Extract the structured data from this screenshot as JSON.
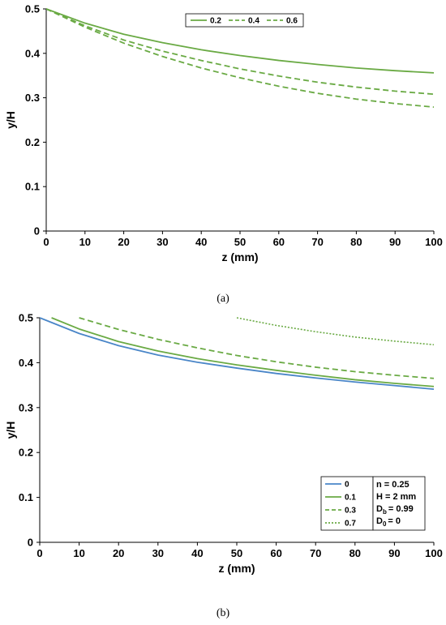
{
  "chart_data": [
    {
      "type": "line",
      "caption": "(a)",
      "xlabel": "z (mm)",
      "ylabel": "y/H",
      "xlim": [
        0,
        100
      ],
      "ylim": [
        0,
        0.5
      ],
      "xticks": [
        0,
        10,
        20,
        30,
        40,
        50,
        60,
        70,
        80,
        90,
        100
      ],
      "yticks": [
        0,
        0.1,
        0.2,
        0.3,
        0.4,
        0.5
      ],
      "ytick_labels": [
        "0",
        "0.1",
        "0.2",
        "0.3",
        "0.4",
        "0.5"
      ],
      "grid": false,
      "legend": "top-center",
      "color": "#6aaa44",
      "series": [
        {
          "name": "0.2",
          "style": "solid",
          "x": [
            0,
            10,
            20,
            30,
            40,
            50,
            60,
            70,
            80,
            90,
            100
          ],
          "y": [
            0.5,
            0.468,
            0.443,
            0.424,
            0.408,
            0.395,
            0.384,
            0.375,
            0.367,
            0.361,
            0.356
          ]
        },
        {
          "name": "0.4",
          "style": "dashed",
          "x": [
            0,
            10,
            20,
            30,
            40,
            50,
            60,
            70,
            80,
            90,
            100
          ],
          "y": [
            0.5,
            0.462,
            0.43,
            0.405,
            0.384,
            0.365,
            0.349,
            0.335,
            0.324,
            0.315,
            0.308
          ]
        },
        {
          "name": "0.6",
          "style": "dashed",
          "x": [
            0,
            10,
            20,
            30,
            40,
            50,
            60,
            70,
            80,
            90,
            100
          ],
          "y": [
            0.5,
            0.459,
            0.423,
            0.393,
            0.367,
            0.345,
            0.326,
            0.31,
            0.297,
            0.287,
            0.279
          ]
        }
      ]
    },
    {
      "type": "line",
      "caption": "(b)",
      "xlabel": "z (mm)",
      "ylabel": "y/H",
      "xlim": [
        0,
        100
      ],
      "ylim": [
        0,
        0.5
      ],
      "xticks": [
        0,
        10,
        20,
        30,
        40,
        50,
        60,
        70,
        80,
        90,
        100
      ],
      "yticks": [
        0,
        0.1,
        0.2,
        0.3,
        0.4,
        0.5
      ],
      "ytick_labels": [
        "0",
        "0.1",
        "0.2",
        "0.3",
        "0.4",
        "0.5"
      ],
      "grid": false,
      "legend": "bottom-right",
      "parameters": [
        "n = 0.25",
        "H = 2 mm",
        "D",
        "b",
        "= 0.99",
        "D",
        "0",
        "= 0"
      ],
      "series": [
        {
          "name": "0",
          "style": "solid",
          "color": "#4a86c8",
          "x": [
            0,
            10,
            20,
            30,
            40,
            50,
            60,
            70,
            80,
            90,
            100
          ],
          "y": [
            0.5,
            0.465,
            0.438,
            0.417,
            0.401,
            0.388,
            0.376,
            0.366,
            0.357,
            0.349,
            0.341
          ]
        },
        {
          "name": "0.1",
          "style": "solid",
          "color": "#6aaa44",
          "x": [
            3,
            10,
            20,
            30,
            40,
            50,
            60,
            70,
            80,
            90,
            100
          ],
          "y": [
            0.5,
            0.475,
            0.447,
            0.426,
            0.409,
            0.395,
            0.383,
            0.372,
            0.362,
            0.354,
            0.347
          ]
        },
        {
          "name": "0.3",
          "style": "dashed",
          "color": "#6aaa44",
          "x": [
            10,
            20,
            30,
            40,
            50,
            60,
            70,
            80,
            90,
            100
          ],
          "y": [
            0.5,
            0.474,
            0.452,
            0.433,
            0.416,
            0.402,
            0.39,
            0.38,
            0.372,
            0.365
          ]
        },
        {
          "name": "0.7",
          "style": "dotted",
          "color": "#6aaa44",
          "x": [
            50,
            60,
            70,
            80,
            90,
            100
          ],
          "y": [
            0.5,
            0.483,
            0.469,
            0.457,
            0.448,
            0.44
          ]
        }
      ]
    }
  ]
}
